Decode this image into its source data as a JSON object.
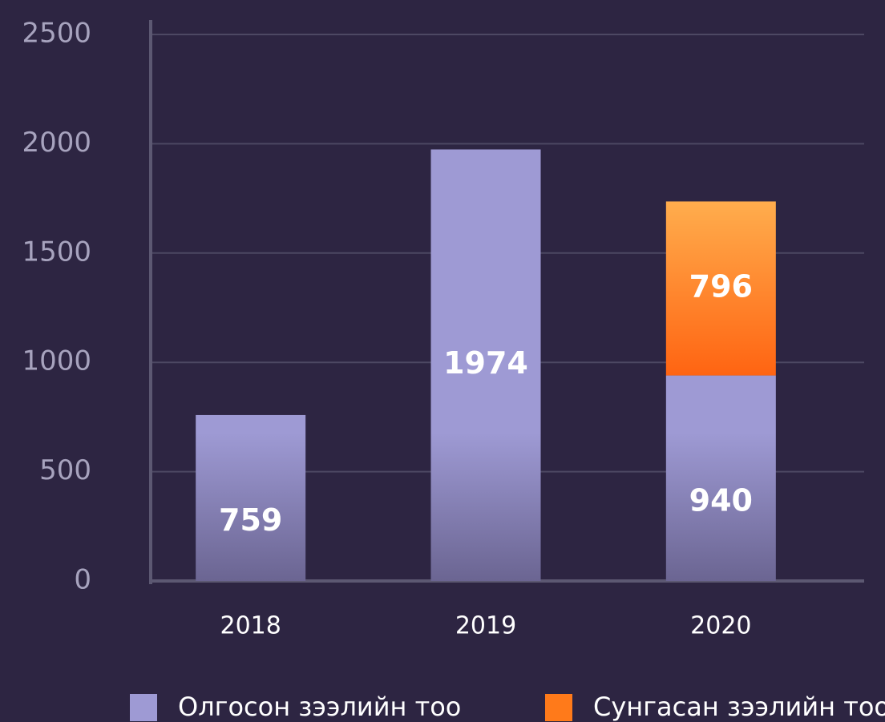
{
  "chart_data": {
    "type": "stacked_bar",
    "categories": [
      "2018",
      "2019",
      "2020"
    ],
    "series": [
      {
        "name": "Олгосон зээлийн тоо",
        "color": "#9e9ad4",
        "values": [
          759,
          1974,
          940
        ]
      },
      {
        "name": "Сунгасан зээлийн тоо",
        "color": "#ff7a1a",
        "values": [
          null,
          null,
          796
        ]
      }
    ],
    "ylim": [
      0,
      2500
    ],
    "yticks": [
      0,
      500,
      1000,
      1500,
      2000,
      2500
    ],
    "grid": true,
    "legend": "bottom"
  }
}
